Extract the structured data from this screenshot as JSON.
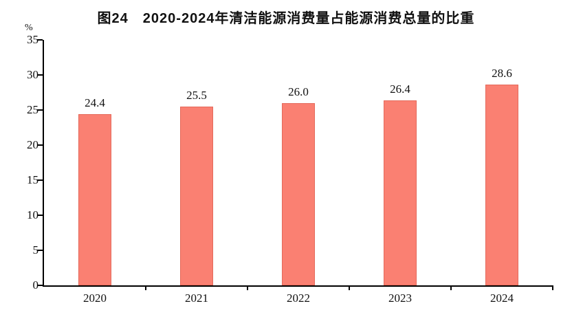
{
  "title": "图24　2020-2024年清洁能源消费量占能源消费总量的比重",
  "chart_data": {
    "type": "bar",
    "title": "图24　2020-2024年清洁能源消费量占能源消费总量的比重",
    "categories": [
      "2020",
      "2021",
      "2022",
      "2023",
      "2024"
    ],
    "values": [
      24.4,
      25.5,
      26.0,
      26.4,
      28.6
    ],
    "value_labels": [
      "24.4",
      "25.5",
      "26.0",
      "26.4",
      "28.6"
    ],
    "xlabel": "",
    "ylabel": "%",
    "ylim": [
      0,
      35
    ],
    "yticks": [
      0,
      5,
      10,
      15,
      20,
      25,
      30,
      35
    ],
    "grid": false,
    "legend": false,
    "bar_color": "#fa8072",
    "bar_border_color": "#e4695a",
    "axis_color": "#000000",
    "text_color": "#111111"
  }
}
